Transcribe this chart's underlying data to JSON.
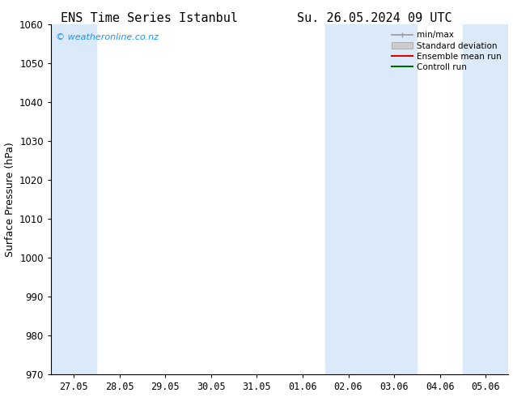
{
  "title_left": "ENS Time Series Istanbul",
  "title_right": "Su. 26.05.2024 09 UTC",
  "ylabel": "Surface Pressure (hPa)",
  "ylim": [
    970,
    1060
  ],
  "yticks": [
    970,
    980,
    990,
    1000,
    1010,
    1020,
    1030,
    1040,
    1050,
    1060
  ],
  "background_color": "#ffffff",
  "plot_bg_color": "#ffffff",
  "watermark": "© weatheronline.co.nz",
  "watermark_color": "#1E90FF",
  "shaded_bands_color": "#daeaf8",
  "x_tick_labels": [
    "27.05",
    "28.05",
    "29.05",
    "30.05",
    "31.05",
    "01.06",
    "02.06",
    "03.06",
    "04.06",
    "05.06"
  ],
  "title_fontsize": 11,
  "label_fontsize": 9,
  "tick_fontsize": 8.5
}
